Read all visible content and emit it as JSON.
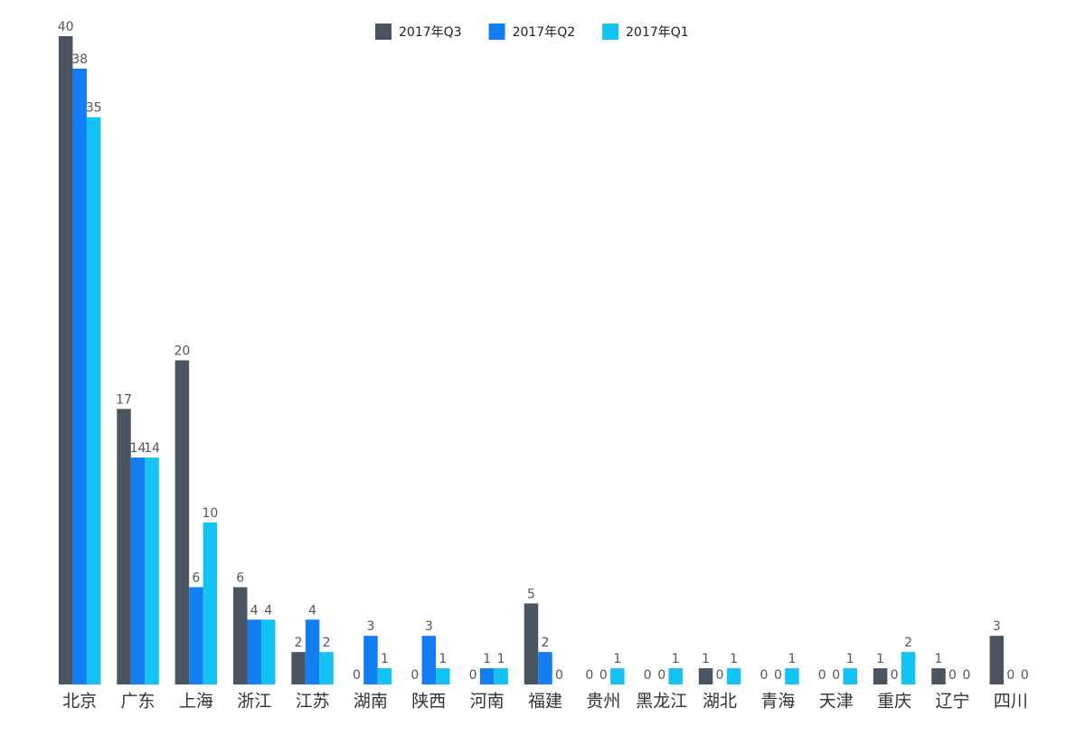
{
  "chart_data": {
    "type": "bar",
    "categories": [
      "北京",
      "广东",
      "上海",
      "浙江",
      "江苏",
      "湖南",
      "陕西",
      "河南",
      "福建",
      "贵州",
      "黑龙江",
      "湖北",
      "青海",
      "天津",
      "重庆",
      "辽宁",
      "四川"
    ],
    "series": [
      {
        "name": "2017年Q3",
        "color": "#4b5562",
        "values": [
          40,
          17,
          20,
          6,
          2,
          0,
          0,
          0,
          5,
          0,
          0,
          1,
          0,
          0,
          1,
          1,
          3
        ]
      },
      {
        "name": "2017年Q2",
        "color": "#137df2",
        "values": [
          38,
          14,
          6,
          4,
          4,
          3,
          3,
          1,
          2,
          0,
          0,
          0,
          0,
          0,
          0,
          0,
          0
        ]
      },
      {
        "name": "2017年Q1",
        "color": "#12c3f3",
        "values": [
          35,
          14,
          10,
          4,
          2,
          1,
          1,
          1,
          0,
          1,
          1,
          1,
          1,
          1,
          2,
          0,
          0
        ]
      }
    ],
    "ylim": [
      0,
      40
    ],
    "legend": "top"
  }
}
